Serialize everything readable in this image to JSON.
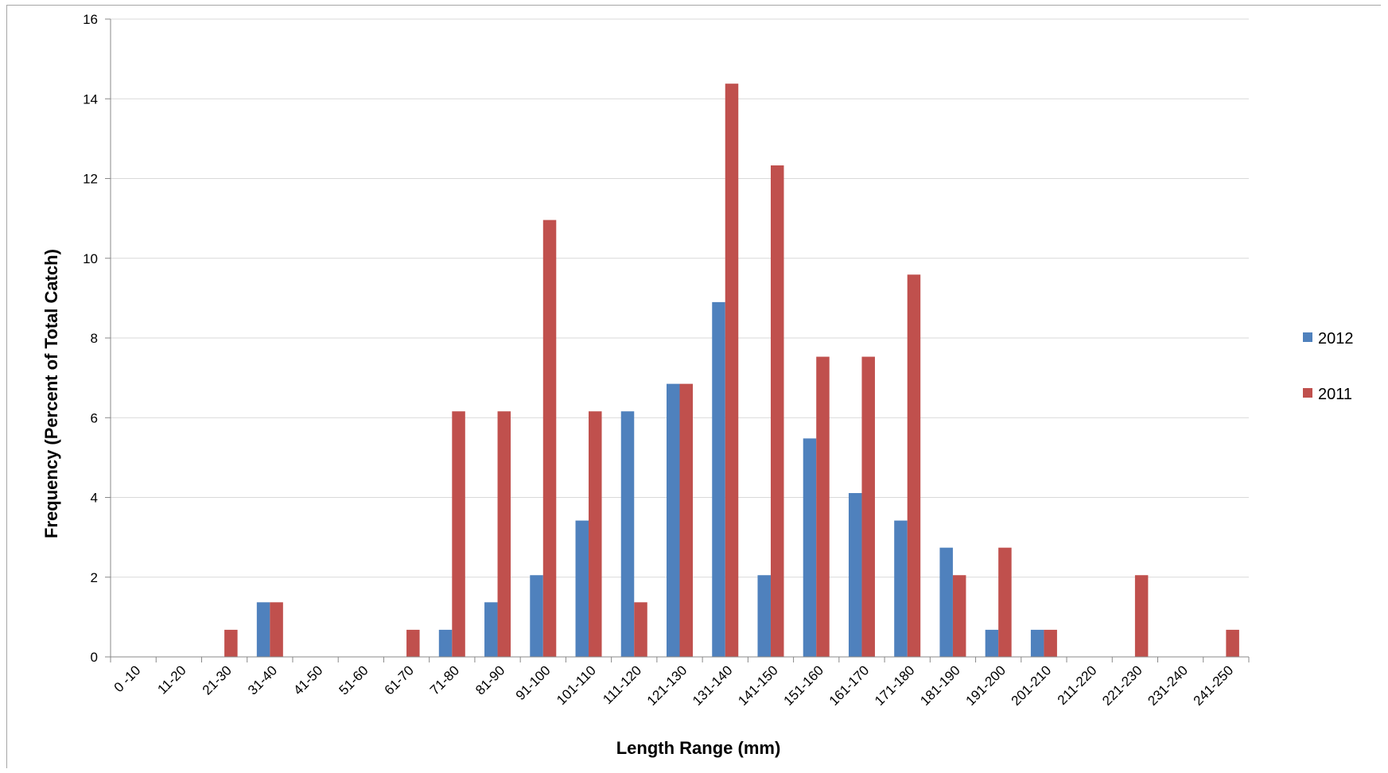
{
  "chart_data": {
    "type": "bar",
    "title": "",
    "xlabel": "Length Range (mm)",
    "ylabel": "Frequency (Percent of Total Catch)",
    "ylim": [
      0,
      16
    ],
    "yticks": [
      0,
      2,
      4,
      6,
      8,
      10,
      12,
      14,
      16
    ],
    "grid": true,
    "legend_position": "right",
    "categories": [
      "0 -10",
      "11-20",
      "21-30",
      "31-40",
      "41-50",
      "51-60",
      "61-70",
      "71-80",
      "81-90",
      "91-100",
      "101-110",
      "111-120",
      "121-130",
      "131-140",
      "141-150",
      "151-160",
      "161-170",
      "171-180",
      "181-190",
      "191-200",
      "201-210",
      "211-220",
      "221-230",
      "231-240",
      "241-250"
    ],
    "series": [
      {
        "name": "2012",
        "color": "#4f81bd",
        "values": [
          0,
          0,
          0,
          1.37,
          0,
          0,
          0,
          0.68,
          1.37,
          2.05,
          3.42,
          6.16,
          6.85,
          8.9,
          2.05,
          5.48,
          4.11,
          3.42,
          2.74,
          0.68,
          0.68,
          0,
          0,
          0,
          0
        ]
      },
      {
        "name": "2011",
        "color": "#c0504d",
        "values": [
          0,
          0,
          0.68,
          1.37,
          0,
          0,
          0.68,
          6.16,
          6.16,
          10.96,
          6.16,
          1.37,
          6.85,
          14.38,
          12.33,
          7.53,
          7.53,
          9.59,
          2.05,
          2.74,
          0.68,
          0,
          2.05,
          0,
          0.68
        ]
      }
    ]
  }
}
